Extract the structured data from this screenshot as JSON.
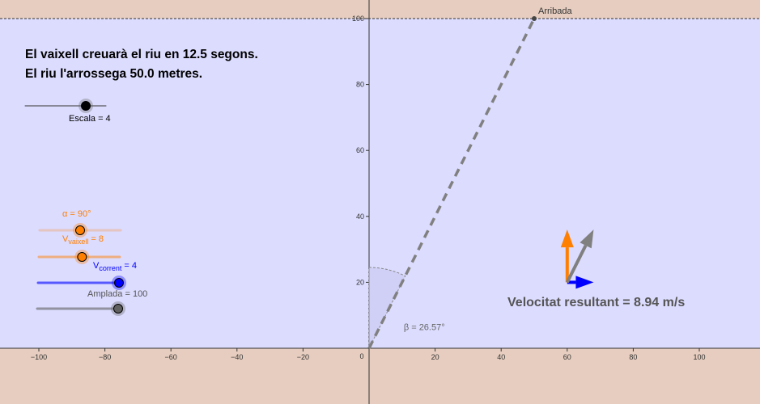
{
  "messages": {
    "line1": "El vaixell creuarà el riu en 12.5 segons.",
    "line2": "El riu l'arrossega 50.0 metres."
  },
  "sliders": {
    "escala": {
      "label": "Escala = 4",
      "value": 4,
      "min": 1,
      "max": 5
    },
    "alpha": {
      "label": "α = 90°",
      "value": 90,
      "min": 0,
      "max": 180,
      "color": "#ff7f00"
    },
    "v_vaixell": {
      "prefix": "V",
      "sub": "vaixell",
      "suffix": " = 8",
      "value": 8,
      "min": 0,
      "max": 15,
      "color": "#ff7f00"
    },
    "v_corrent": {
      "prefix": "V",
      "sub": "corrent",
      "suffix": " = 4",
      "value": 4,
      "min": 0,
      "max": 4,
      "color": "#0000ff"
    },
    "amplada": {
      "label": "Amplada = 100",
      "value": 100,
      "min": 0,
      "max": 100,
      "color": "#606060"
    }
  },
  "graph": {
    "x_ticks": [
      -100,
      -80,
      -60,
      -40,
      -20,
      0,
      20,
      40,
      60,
      80,
      100
    ],
    "y_ticks": [
      20,
      40,
      60,
      80,
      100
    ],
    "river_y_range": [
      0,
      100
    ],
    "arrival_label": "Arribada",
    "arrival_point": [
      50,
      100
    ],
    "angle_label": "β = 26.57°",
    "resultant_label": "Velocitat resultant = 8.94 m/s",
    "vectors": {
      "boat": [
        0,
        8
      ],
      "current": [
        4,
        0
      ],
      "resultant": [
        4,
        8
      ]
    },
    "colors": {
      "river": "#dcdcff",
      "bank": "#e6cdbf",
      "boat_vector": "#ff7f00",
      "current_vector": "#0000ff",
      "resultant_vector": "#808080",
      "path": "#808080"
    }
  }
}
